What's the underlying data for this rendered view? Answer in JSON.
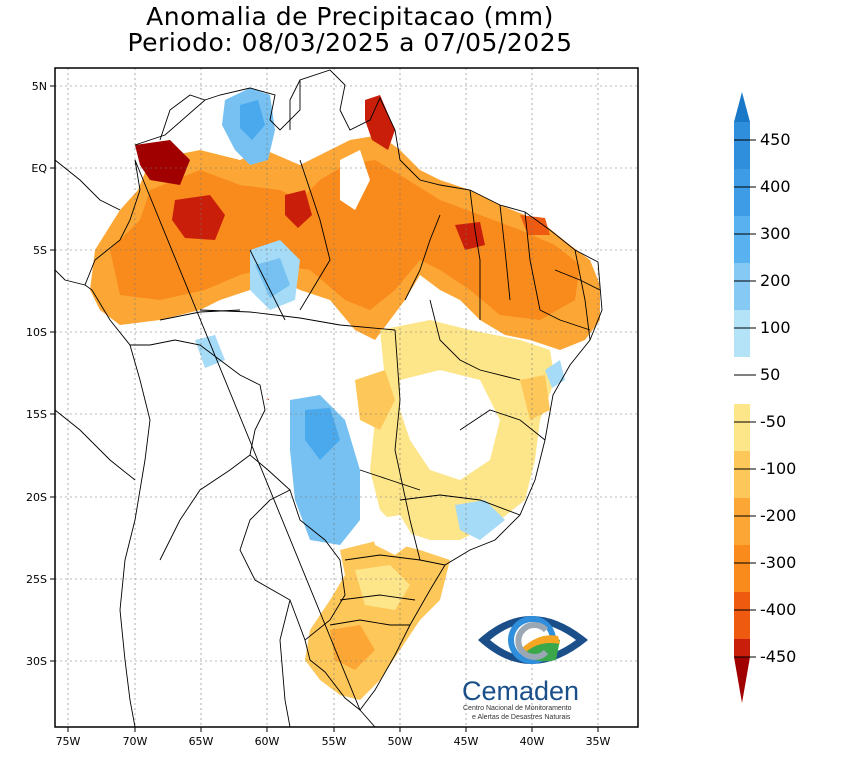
{
  "title": {
    "line1": "Anomalia de Precipitacao (mm)",
    "line2": "Periodo: 08/03/2025 a 07/05/2025"
  },
  "axes": {
    "x_ticks": [
      "75W",
      "70W",
      "65W",
      "60W",
      "55W",
      "50W",
      "45W",
      "40W",
      "35W"
    ],
    "y_ticks": [
      "5N",
      "EQ",
      "5S",
      "10S",
      "15S",
      "20S",
      "25S",
      "30S"
    ]
  },
  "colorbar": {
    "labels": [
      "450",
      "400",
      "300",
      "200",
      "100",
      "50",
      "-50",
      "-100",
      "-200",
      "-300",
      "-400",
      "-450"
    ],
    "colors": {
      "c450": "#1a78c8",
      "c400": "#2f8fdc",
      "c300": "#4aa8ec",
      "c200": "#76c1f2",
      "c100": "#a6dbf7",
      "c50": "#d4f1fb",
      "neutral": "#ffffff",
      "m50": "#fde58a",
      "m100": "#fdc75a",
      "m200": "#fca735",
      "m300": "#f98a1c",
      "m400": "#ee5a10",
      "m450": "#c81e0a",
      "extreme": "#a00000"
    }
  },
  "logo": {
    "name": "Cemaden",
    "subtitle1": "Centro Nacional de Monitoramento",
    "subtitle2": "e Alertas de Desastres Naturais"
  }
}
